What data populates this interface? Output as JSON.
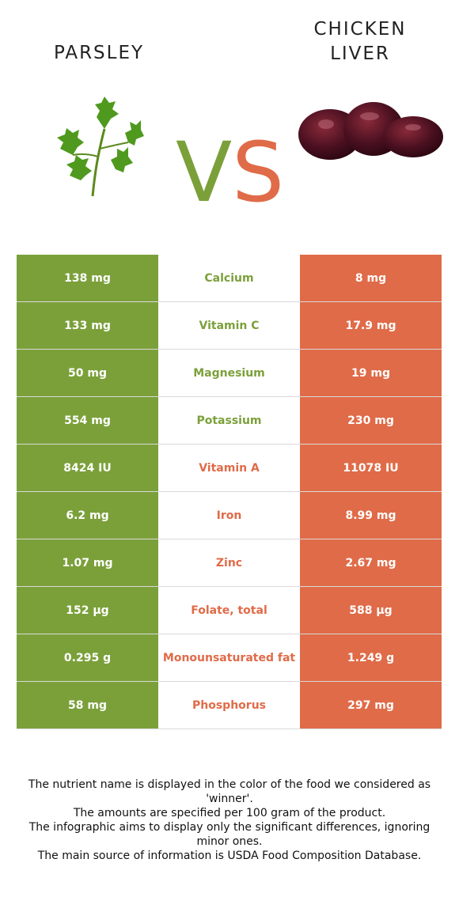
{
  "header": {
    "left_food": "PARSLEY",
    "right_food": "CHICKEN\nLIVER",
    "vs_v": "V",
    "vs_s": "S"
  },
  "colors": {
    "parsley_green": "#7ba03a",
    "liver_orange": "#e06b48"
  },
  "icons": {
    "left": "parsley-image",
    "right": "chicken-liver-image"
  },
  "rows": [
    {
      "left": "138 mg",
      "name": "Calcium",
      "right": "8 mg",
      "winner": "left"
    },
    {
      "left": "133 mg",
      "name": "Vitamin C",
      "right": "17.9 mg",
      "winner": "left"
    },
    {
      "left": "50 mg",
      "name": "Magnesium",
      "right": "19 mg",
      "winner": "left"
    },
    {
      "left": "554 mg",
      "name": "Potassium",
      "right": "230 mg",
      "winner": "left"
    },
    {
      "left": "8424 IU",
      "name": "Vitamin A",
      "right": "11078 IU",
      "winner": "right"
    },
    {
      "left": "6.2 mg",
      "name": "Iron",
      "right": "8.99 mg",
      "winner": "right"
    },
    {
      "left": "1.07 mg",
      "name": "Zinc",
      "right": "2.67 mg",
      "winner": "right"
    },
    {
      "left": "152 µg",
      "name": "Folate, total",
      "right": "588 µg",
      "winner": "right"
    },
    {
      "left": "0.295 g",
      "name": "Monounsaturated fat",
      "right": "1.249 g",
      "winner": "right"
    },
    {
      "left": "58 mg",
      "name": "Phosphorus",
      "right": "297 mg",
      "winner": "right"
    }
  ],
  "footer": [
    "The nutrient name is displayed in the color of the food we considered as 'winner'.",
    "The amounts are specified per 100 gram of the product.",
    "The infographic aims to display only the significant differences, ignoring minor ones.",
    "The main source of information is USDA Food Composition Database."
  ]
}
